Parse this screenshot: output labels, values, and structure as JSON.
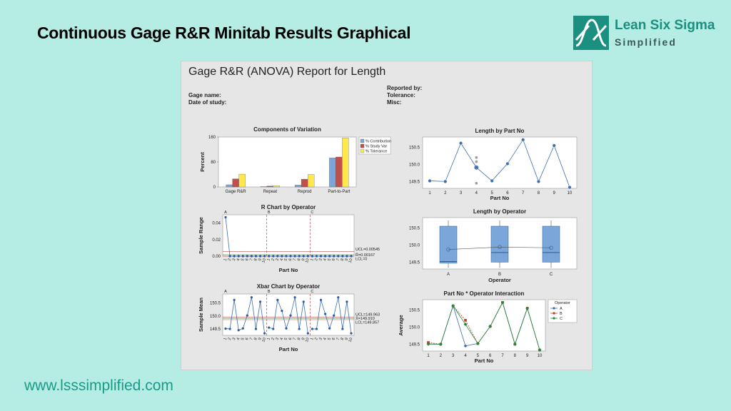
{
  "slide": {
    "title": "Continuous Gage R&R Minitab Results Graphical",
    "logo_line1": "Lean Six Sigma",
    "logo_line2": "Simplified",
    "footer_url": "www.lsssimplified.com",
    "colors": {
      "background": "#b5ece3",
      "brand": "#1b8f80",
      "series_blue": "#3a6fb0"
    }
  },
  "report": {
    "title": "Gage R&R (ANOVA) Report for Length",
    "gage_name": "Gage name:",
    "date_of_study": "Date of study:",
    "reported_by": "Reported by:",
    "tolerance": "Tolerance:",
    "misc": "Misc:"
  },
  "chart_data": [
    {
      "type": "bar",
      "title": "Components of Variation",
      "ylabel": "Percent",
      "categories": [
        "Gage R&R",
        "Repeat",
        "Reprod",
        "Part-to-Part"
      ],
      "yticks": [
        "0",
        "80",
        "160"
      ],
      "ylim": [
        0,
        160
      ],
      "series": [
        {
          "name": "% Contribution",
          "color": "#7aa6d9",
          "values": [
            7,
            1,
            6,
            93
          ]
        },
        {
          "name": "% Study Var",
          "color": "#c0504d",
          "values": [
            26,
            3,
            25,
            96
          ]
        },
        {
          "name": "% Tolerance",
          "color": "#ffe94a",
          "values": [
            41,
            4,
            40,
            157
          ]
        }
      ],
      "legend": "right"
    },
    {
      "type": "line",
      "title": "R Chart by Operator",
      "xlabel": "Part No",
      "ylabel": "Sample Range",
      "ylim": [
        0,
        0.05
      ],
      "yticks": [
        "0.00",
        "0.02",
        "0.04"
      ],
      "groups": [
        "A",
        "B",
        "C"
      ],
      "xticks": [
        "1",
        "2",
        "3",
        "4",
        "5",
        "6",
        "7",
        "8",
        "9",
        "10"
      ],
      "values": [
        0.047,
        0,
        0,
        0,
        0,
        0,
        0,
        0,
        0,
        0,
        0,
        0,
        0,
        0,
        0,
        0,
        0,
        0,
        0,
        0,
        0,
        0,
        0,
        0,
        0,
        0,
        0,
        0,
        0,
        0
      ],
      "ucl": 0.00545,
      "rbar": 0.00167,
      "lcl": 0,
      "labels": {
        "ucl": "UCL=0.00545",
        "rbar": "R̄=0.00167",
        "lcl": "LCL=0"
      }
    },
    {
      "type": "line",
      "title": "Xbar Chart by Operator",
      "xlabel": "Part No",
      "ylabel": "Sample Mean",
      "ylim": [
        149.25,
        150.85
      ],
      "yticks": [
        "149.5",
        "150.0",
        "150.5"
      ],
      "groups": [
        "A",
        "B",
        "C"
      ],
      "xticks": [
        "1",
        "2",
        "3",
        "4",
        "5",
        "6",
        "7",
        "8",
        "9",
        "10"
      ],
      "values": [
        149.51,
        149.5,
        150.62,
        149.45,
        149.52,
        150.02,
        150.72,
        149.5,
        150.55,
        149.33,
        149.55,
        149.5,
        150.62,
        150.2,
        149.52,
        150.02,
        150.72,
        149.5,
        150.55,
        149.33,
        149.5,
        149.5,
        150.62,
        150.08,
        149.52,
        150.02,
        150.72,
        149.5,
        150.55,
        149.33
      ],
      "ucl": 149.963,
      "xbar": 149.91,
      "lcl": 149.857,
      "labels": {
        "ucl": "UCL=149.963",
        "xbar": "X̄=149.910",
        "lcl": "LCL=149.857"
      }
    },
    {
      "type": "scatter",
      "title": "Length by Part No",
      "xlabel": "Part No",
      "xticks": [
        "1",
        "2",
        "3",
        "4",
        "5",
        "6",
        "7",
        "8",
        "9",
        "10"
      ],
      "ylim": [
        149.3,
        150.8
      ],
      "yticks": [
        "149.5",
        "150.0",
        "150.5"
      ],
      "means": [
        149.52,
        149.5,
        150.62,
        149.91,
        149.52,
        150.02,
        150.72,
        149.5,
        150.55,
        149.33
      ],
      "spread_points": [
        {
          "part": 4,
          "value": 150.2
        },
        {
          "part": 4,
          "value": 150.08
        },
        {
          "part": 4,
          "value": 149.45
        }
      ]
    },
    {
      "type": "box",
      "title": "Length by Operator",
      "xlabel": "Operator",
      "categories": [
        "A",
        "B",
        "C"
      ],
      "ylim": [
        149.3,
        150.8
      ],
      "yticks": [
        "149.5",
        "150.0",
        "150.5"
      ],
      "boxes": [
        {
          "min": 149.33,
          "q1": 149.47,
          "median": 149.52,
          "q3": 150.55,
          "max": 150.72,
          "mean": 149.87
        },
        {
          "min": 149.33,
          "q1": 149.5,
          "median": 149.78,
          "q3": 150.55,
          "max": 150.72,
          "mean": 149.94
        },
        {
          "min": 149.33,
          "q1": 149.5,
          "median": 149.78,
          "q3": 150.55,
          "max": 150.72,
          "mean": 149.92
        }
      ]
    },
    {
      "type": "line",
      "title": "Part No * Operator Interaction",
      "xlabel": "Part No",
      "ylabel": "Average",
      "xticks": [
        "1",
        "2",
        "3",
        "4",
        "5",
        "6",
        "7",
        "8",
        "9",
        "10"
      ],
      "ylim": [
        149.3,
        150.8
      ],
      "yticks": [
        "149.5",
        "150.0",
        "150.5"
      ],
      "legend_title": "Operator",
      "series": [
        {
          "name": "A",
          "color": "#3a6fb0",
          "values": [
            149.51,
            149.5,
            150.62,
            149.45,
            149.52,
            150.02,
            150.72,
            149.5,
            150.55,
            149.33
          ]
        },
        {
          "name": "B",
          "color": "#c0392b",
          "values": [
            149.55,
            149.5,
            150.62,
            150.2,
            149.52,
            150.02,
            150.72,
            149.5,
            150.55,
            149.33
          ]
        },
        {
          "name": "C",
          "color": "#1e8a3a",
          "values": [
            149.5,
            149.5,
            150.62,
            150.08,
            149.52,
            150.02,
            150.72,
            149.5,
            150.55,
            149.33
          ]
        }
      ]
    }
  ]
}
